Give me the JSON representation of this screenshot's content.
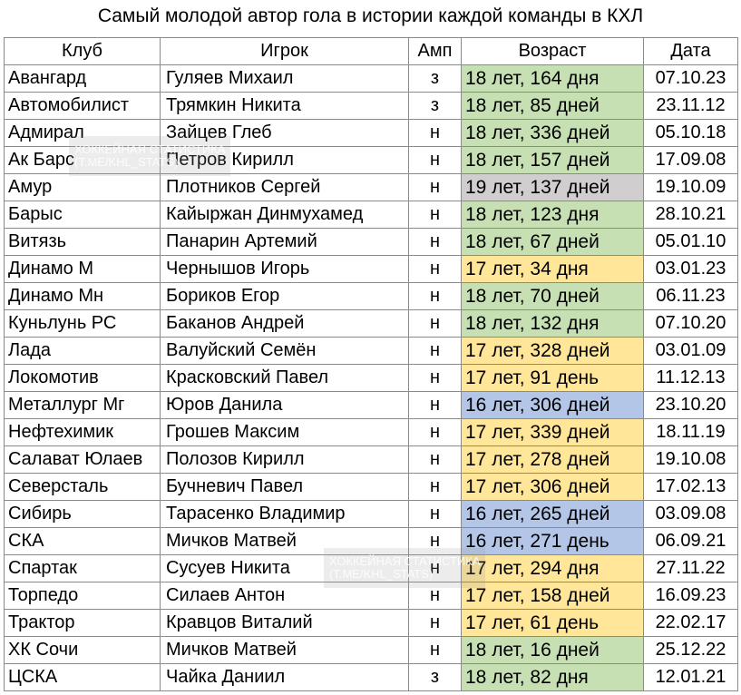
{
  "title": "Самый молодой автор гола в истории каждой команды в КХЛ",
  "headers": [
    "Клуб",
    "Игрок",
    "Амп",
    "Возраст",
    "Дата"
  ],
  "colors": {
    "green": "#c6e0b4",
    "yellow": "#ffe699",
    "blue": "#b4c6e7",
    "gray": "#d0cece"
  },
  "rows": [
    {
      "club": "Авангард",
      "player": "Гуляев Михаил",
      "pos": "з",
      "age": "18 лет, 164 дня",
      "color": "green",
      "date": "07.10.23"
    },
    {
      "club": "Автомобилист",
      "player": "Трямкин Никита",
      "pos": "з",
      "age": "18 лет, 85 дней",
      "color": "green",
      "date": "23.11.12"
    },
    {
      "club": "Адмирал",
      "player": "Зайцев Глеб",
      "pos": "н",
      "age": "18 лет, 336 дней",
      "color": "green",
      "date": "05.10.18"
    },
    {
      "club": "Ак Барс",
      "player": "Петров Кирилл",
      "pos": "н",
      "age": "18 лет, 157 дней",
      "color": "green",
      "date": "17.09.08"
    },
    {
      "club": "Амур",
      "player": "Плотников Сергей",
      "pos": "н",
      "age": "19 лет, 137 дней",
      "color": "gray",
      "date": "19.10.09"
    },
    {
      "club": "Барыс",
      "player": "Кайыржан Динмухамед",
      "pos": "н",
      "age": "18 лет, 123 дня",
      "color": "green",
      "date": "28.10.21"
    },
    {
      "club": "Витязь",
      "player": "Панарин Артемий",
      "pos": "н",
      "age": "18 лет, 67 дней",
      "color": "green",
      "date": "05.01.10"
    },
    {
      "club": "Динамо М",
      "player": "Чернышов Игорь",
      "pos": "н",
      "age": "17 лет, 34 дня",
      "color": "yellow",
      "date": "03.01.23"
    },
    {
      "club": "Динамо Мн",
      "player": "Бориков Егор",
      "pos": "н",
      "age": "18 лет, 70 дней",
      "color": "green",
      "date": "06.11.23"
    },
    {
      "club": "Куньлунь РС",
      "player": "Баканов Андрей",
      "pos": "н",
      "age": "18 лет, 132 дня",
      "color": "green",
      "date": "07.10.20"
    },
    {
      "club": "Лада",
      "player": "Валуйский Семён",
      "pos": "н",
      "age": "17 лет, 328 дней",
      "color": "yellow",
      "date": "03.01.09"
    },
    {
      "club": "Локомотив",
      "player": "Красковский Павел",
      "pos": "н",
      "age": "17 лет, 91 день",
      "color": "yellow",
      "date": "11.12.13"
    },
    {
      "club": "Металлург Мг",
      "player": "Юров Данила",
      "pos": "н",
      "age": "16 лет, 306 дней",
      "color": "blue",
      "date": "23.10.20"
    },
    {
      "club": "Нефтехимик",
      "player": "Грошев Максим",
      "pos": "н",
      "age": "17 лет, 339 дней",
      "color": "yellow",
      "date": "18.11.19"
    },
    {
      "club": "Салават Юлаев",
      "player": "Полозов Кирилл",
      "pos": "н",
      "age": "17 лет, 278 дней",
      "color": "yellow",
      "date": "19.10.08"
    },
    {
      "club": "Северсталь",
      "player": "Бучневич Павел",
      "pos": "н",
      "age": "17 лет, 306 дней",
      "color": "yellow",
      "date": "17.02.13"
    },
    {
      "club": "Сибирь",
      "player": "Тарасенко Владимир",
      "pos": "н",
      "age": "16 лет, 265 дней",
      "color": "blue",
      "date": "03.09.08"
    },
    {
      "club": "СКА",
      "player": "Мичков Матвей",
      "pos": "н",
      "age": "16 лет, 271 день",
      "color": "blue",
      "date": "06.09.21"
    },
    {
      "club": "Спартак",
      "player": "Сусуев Никита",
      "pos": "н",
      "age": "17 лет, 294 дня",
      "color": "yellow",
      "date": "27.11.22"
    },
    {
      "club": "Торпедо",
      "player": "Силаев Антон",
      "pos": "н",
      "age": "17 лет, 158 дней",
      "color": "yellow",
      "date": "16.09.23"
    },
    {
      "club": "Трактор",
      "player": "Кравцов Виталий",
      "pos": "н",
      "age": "17 лет, 61 день",
      "color": "yellow",
      "date": "22.02.17"
    },
    {
      "club": "ХК Сочи",
      "player": "Мичков Матвей",
      "pos": "н",
      "age": "18 лет, 16 дней",
      "color": "green",
      "date": "25.12.22"
    },
    {
      "club": "ЦСКА",
      "player": "Чайка Даниил",
      "pos": "з",
      "age": "18 лет, 82 дня",
      "color": "green",
      "date": "12.01.21"
    }
  ],
  "watermarks": [
    {
      "line1": "ХОККЕЙНАЯ СТАТИСТИКА",
      "line2": "(T.ME/KHL_STATS)"
    },
    {
      "line1": "ХОККЕЙНАЯ СТАТИСТИКА",
      "line2": "(T.ME/KHL_STATS)"
    }
  ]
}
